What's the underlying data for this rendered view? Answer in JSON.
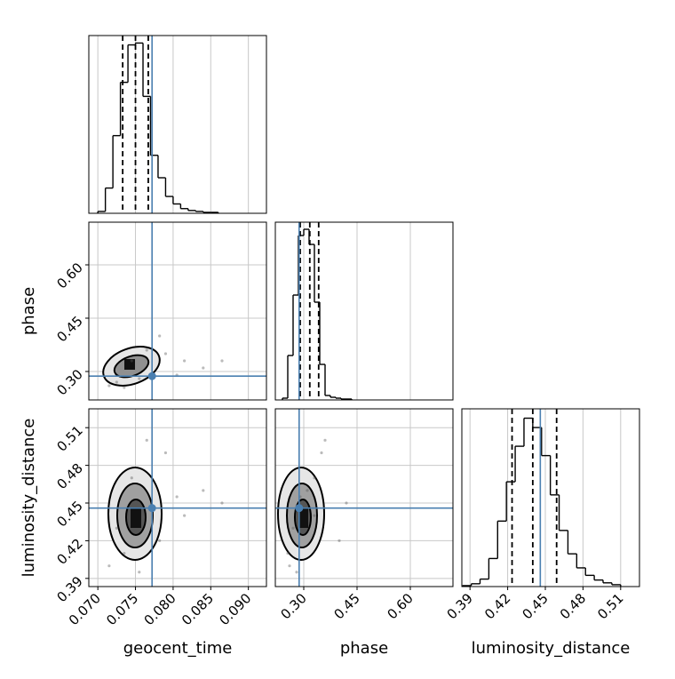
{
  "chart_data": {
    "type": "corner",
    "parameters": [
      {
        "name": "geocent_time",
        "lim": [
          0.0688,
          0.0924
        ],
        "ticks": [
          {
            "value": 0.07,
            "label": "0.070"
          },
          0.075,
          {
            "value": 0.08,
            "label": "0.080"
          },
          0.085,
          {
            "value": 0.09,
            "label": "0.090"
          }
        ],
        "quantiles": [
          0.0733,
          0.075,
          0.0767
        ],
        "truth": 0.0772,
        "bins": [
          0.07,
          0.071,
          0.072,
          0.073,
          0.074,
          0.075,
          0.076,
          0.077,
          0.078,
          0.079,
          0.08,
          0.081,
          0.082,
          0.083,
          0.084,
          0.085,
          0.086
        ],
        "counts": [
          2,
          27,
          83,
          140,
          180,
          182,
          125,
          62,
          38,
          18,
          10,
          5,
          3,
          2,
          1,
          1
        ],
        "count_lim": [
          0,
          190
        ]
      },
      {
        "name": "phase",
        "lim": [
          0.22,
          0.72
        ],
        "ticks": [
          {
            "value": 0.3,
            "label": "0.30"
          },
          0.45,
          {
            "value": 0.6,
            "label": "0.60"
          }
        ],
        "quantiles": [
          0.29,
          0.317,
          0.342
        ],
        "truth": 0.287,
        "bins": [
          0.24,
          0.255,
          0.27,
          0.285,
          0.3,
          0.315,
          0.33,
          0.345,
          0.36,
          0.375,
          0.39,
          0.405,
          0.42,
          0.435
        ],
        "counts": [
          2,
          50,
          118,
          185,
          192,
          175,
          110,
          40,
          5,
          3,
          2,
          1,
          1
        ],
        "count_lim": [
          0,
          200
        ]
      },
      {
        "name": "luminosity_distance",
        "lim": [
          0.3835,
          0.525
        ],
        "ticks": [
          0.39,
          0.42,
          0.45,
          0.48,
          0.51
        ],
        "quantiles": [
          0.4235,
          0.44,
          0.459
        ],
        "truth": 0.446,
        "bins": [
          0.384,
          0.391,
          0.398,
          0.405,
          0.412,
          0.419,
          0.426,
          0.433,
          0.44,
          0.447,
          0.454,
          0.461,
          0.468,
          0.475,
          0.482,
          0.489,
          0.496,
          0.503,
          0.51
        ],
        "counts": [
          1,
          3,
          8,
          30,
          70,
          112,
          150,
          180,
          170,
          140,
          98,
          60,
          35,
          20,
          12,
          7,
          4,
          2
        ],
        "count_lim": [
          0,
          190
        ]
      }
    ],
    "samples": [
      {
        "x": [
          0.0725,
          0.0745,
          0.079,
          0.0815,
          0.084,
          0.0735,
          0.0765,
          0.0805,
          0.0865,
          0.0715,
          0.0782,
          0.0755
        ],
        "y": [
          0.27,
          0.33,
          0.35,
          0.33,
          0.31,
          0.255,
          0.36,
          0.29,
          0.33,
          0.26,
          0.4,
          0.28
        ]
      },
      {
        "x": [
          0.0725,
          0.0745,
          0.079,
          0.0815,
          0.084,
          0.0735,
          0.0765,
          0.0805,
          0.0865,
          0.0715,
          0.0782,
          0.0755
        ],
        "y": [
          0.43,
          0.47,
          0.49,
          0.44,
          0.46,
          0.41,
          0.5,
          0.455,
          0.45,
          0.4,
          0.42,
          0.395
        ]
      },
      {
        "x": [
          0.27,
          0.33,
          0.35,
          0.33,
          0.31,
          0.255,
          0.36,
          0.29,
          0.42,
          0.26,
          0.4,
          0.28
        ],
        "y": [
          0.43,
          0.47,
          0.49,
          0.44,
          0.46,
          0.41,
          0.5,
          0.455,
          0.45,
          0.4,
          0.42,
          0.395
        ]
      }
    ]
  }
}
